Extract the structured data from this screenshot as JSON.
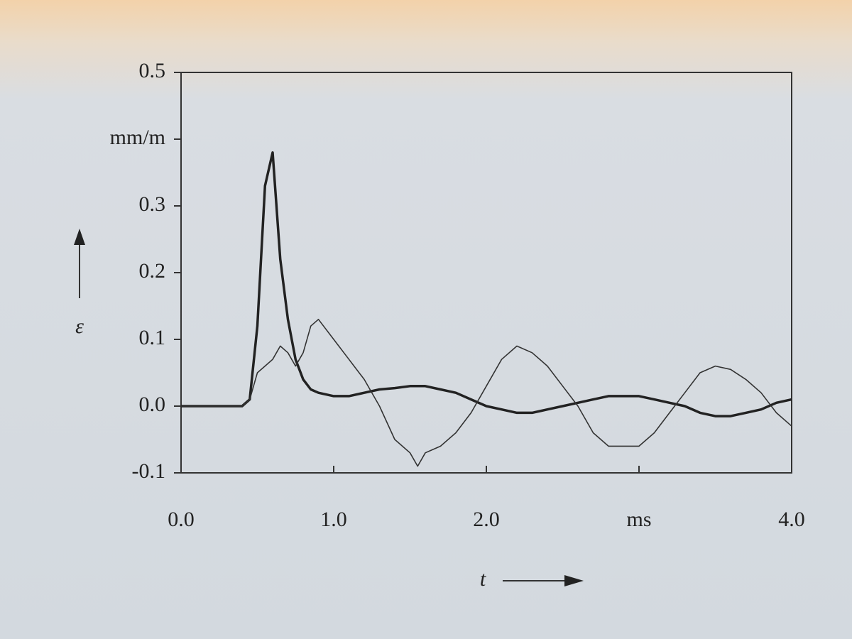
{
  "chart_data": {
    "type": "line",
    "xlabel": "t",
    "ylabel": "ε",
    "x": [
      0,
      0.1,
      0.2,
      0.3,
      0.4,
      0.45,
      0.5,
      0.55,
      0.6,
      0.65,
      0.7,
      0.75,
      0.8,
      0.85,
      0.9,
      1.0,
      1.1,
      1.2,
      1.3,
      1.4,
      1.5,
      1.55,
      1.6,
      1.7,
      1.8,
      1.9,
      2.0,
      2.1,
      2.2,
      2.3,
      2.4,
      2.5,
      2.6,
      2.7,
      2.8,
      2.9,
      3.0,
      3.1,
      3.2,
      3.3,
      3.4,
      3.5,
      3.6,
      3.7,
      3.8,
      3.9,
      4.0
    ],
    "series": [
      {
        "color": "#222222",
        "width": 3.5,
        "values": [
          0,
          0,
          0,
          0,
          0,
          0.01,
          0.12,
          0.33,
          0.38,
          0.22,
          0.13,
          0.07,
          0.04,
          0.025,
          0.02,
          0.015,
          0.015,
          0.02,
          0.025,
          0.027,
          0.03,
          0.03,
          0.03,
          0.025,
          0.02,
          0.01,
          0.0,
          -0.005,
          -0.01,
          -0.01,
          -0.005,
          0.0,
          0.005,
          0.01,
          0.015,
          0.015,
          0.015,
          0.01,
          0.005,
          0.0,
          -0.01,
          -0.015,
          -0.015,
          -0.01,
          -0.005,
          0.005,
          0.01
        ]
      },
      {
        "color": "#333333",
        "width": 1.6,
        "values": [
          0,
          0,
          0,
          0,
          0,
          0.01,
          0.05,
          0.06,
          0.07,
          0.09,
          0.08,
          0.06,
          0.08,
          0.12,
          0.13,
          0.1,
          0.07,
          0.04,
          0.0,
          -0.05,
          -0.07,
          -0.09,
          -0.07,
          -0.06,
          -0.04,
          -0.01,
          0.03,
          0.07,
          0.09,
          0.08,
          0.06,
          0.03,
          0.0,
          -0.04,
          -0.06,
          -0.06,
          -0.06,
          -0.04,
          -0.01,
          0.02,
          0.05,
          0.06,
          0.055,
          0.04,
          0.02,
          -0.01,
          -0.03
        ]
      }
    ],
    "xlim": [
      0,
      4
    ],
    "xticks": [
      {
        "value": 0,
        "label": "0.0"
      },
      {
        "value": 1,
        "label": "1.0"
      },
      {
        "value": 2,
        "label": "2.0"
      },
      {
        "value": 3,
        "label": "ms"
      },
      {
        "value": 4,
        "label": "4.0"
      }
    ],
    "ylim": [
      -0.1,
      0.5
    ],
    "yticks": [
      -0.1,
      {
        "value": 0,
        "label": "0.0"
      },
      0.1,
      0.2,
      0.3,
      {
        "value": 0.4,
        "label": "mm/m"
      },
      0.5
    ]
  }
}
